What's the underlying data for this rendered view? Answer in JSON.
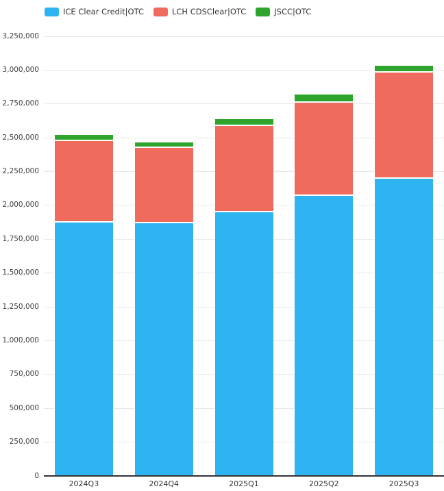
{
  "legend": {
    "items": [
      {
        "label": "ICE Clear Credit|OTC",
        "color": "#2EB4F0"
      },
      {
        "label": "LCH CDSClear|OTC",
        "color": "#EE6B5E"
      },
      {
        "label": "JSCC|OTC",
        "color": "#2FA42D"
      }
    ]
  },
  "chart_data": {
    "type": "bar",
    "stacked": true,
    "title": "",
    "xlabel": "",
    "ylabel": "",
    "categories": [
      "2024Q3",
      "2024Q4",
      "2025Q1",
      "2025Q2",
      "2025Q3"
    ],
    "series": [
      {
        "name": "ICE Clear Credit|OTC",
        "color": "#2EB4F0",
        "values": [
          1880000,
          1875000,
          1955000,
          2075000,
          2200000
        ]
      },
      {
        "name": "LCH CDSClear|OTC",
        "color": "#EE6B5E",
        "values": [
          600000,
          555000,
          635000,
          690000,
          785000
        ]
      },
      {
        "name": "JSCC|OTC",
        "color": "#2FA42D",
        "values": [
          45000,
          40000,
          50000,
          60000,
          50000
        ]
      }
    ],
    "stack_totals": [
      2525000,
      2470000,
      2640000,
      2825000,
      3035000
    ],
    "ylim": [
      0,
      3250000
    ],
    "y_tick_interval": 250000,
    "y_tick_labels": [
      "0",
      "250,000",
      "500,000",
      "750,000",
      "1,000,000",
      "1,250,000",
      "1,500,000",
      "1,750,000",
      "2,000,000",
      "2,250,000",
      "2,500,000",
      "2,750,000",
      "3,000,000",
      "3,250,000"
    ],
    "grid": true,
    "legend_position": "top"
  },
  "colors": {
    "background": "#ffffff",
    "gridline": "#e7e7e7",
    "axis_line": "#333333",
    "y_tick_text": "#404040",
    "x_tick_text": "#333333",
    "legend_text": "#333333"
  }
}
